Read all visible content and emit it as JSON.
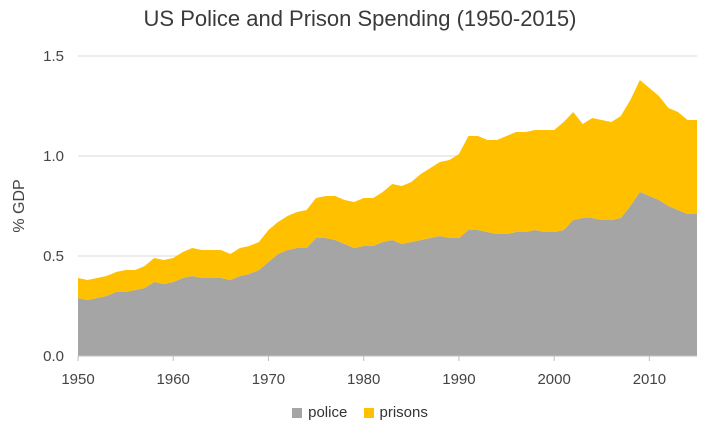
{
  "chart_data": {
    "type": "area",
    "stacked": true,
    "title": "US Police and Prison Spending (1950-2015)",
    "xlabel": "",
    "ylabel": "% GDP",
    "xlim": [
      1950,
      2015
    ],
    "ylim": [
      0,
      1.5
    ],
    "x_ticks": [
      "1950",
      "1960",
      "1970",
      "1980",
      "1990",
      "2000",
      "2010"
    ],
    "y_ticks": [
      "0.0",
      "0.5",
      "1.0",
      "1.5"
    ],
    "grid": "horizontal",
    "legend": "bottom",
    "x": [
      1950,
      1951,
      1952,
      1953,
      1954,
      1955,
      1956,
      1957,
      1958,
      1959,
      1960,
      1961,
      1962,
      1963,
      1964,
      1965,
      1966,
      1967,
      1968,
      1969,
      1970,
      1971,
      1972,
      1973,
      1974,
      1975,
      1976,
      1977,
      1978,
      1979,
      1980,
      1981,
      1982,
      1983,
      1984,
      1985,
      1986,
      1987,
      1988,
      1989,
      1990,
      1991,
      1992,
      1993,
      1994,
      1995,
      1996,
      1997,
      1998,
      1999,
      2000,
      2001,
      2002,
      2003,
      2004,
      2005,
      2006,
      2007,
      2008,
      2009,
      2010,
      2011,
      2012,
      2013,
      2014,
      2015
    ],
    "series": [
      {
        "name": "police",
        "color": "#a5a5a5",
        "values": [
          0.29,
          0.28,
          0.29,
          0.3,
          0.32,
          0.32,
          0.33,
          0.34,
          0.37,
          0.36,
          0.37,
          0.39,
          0.4,
          0.39,
          0.39,
          0.39,
          0.38,
          0.4,
          0.41,
          0.43,
          0.47,
          0.51,
          0.53,
          0.54,
          0.54,
          0.59,
          0.59,
          0.58,
          0.56,
          0.54,
          0.55,
          0.55,
          0.57,
          0.58,
          0.56,
          0.57,
          0.58,
          0.59,
          0.6,
          0.59,
          0.59,
          0.63,
          0.63,
          0.62,
          0.61,
          0.61,
          0.62,
          0.62,
          0.63,
          0.62,
          0.62,
          0.63,
          0.68,
          0.69,
          0.69,
          0.68,
          0.68,
          0.69,
          0.75,
          0.82,
          0.8,
          0.78,
          0.75,
          0.73,
          0.71,
          0.71
        ]
      },
      {
        "name": "prisons",
        "color": "#ffc000",
        "values": [
          0.1,
          0.1,
          0.1,
          0.1,
          0.1,
          0.11,
          0.1,
          0.11,
          0.12,
          0.12,
          0.12,
          0.13,
          0.14,
          0.14,
          0.14,
          0.14,
          0.13,
          0.14,
          0.14,
          0.14,
          0.16,
          0.16,
          0.17,
          0.18,
          0.19,
          0.2,
          0.21,
          0.22,
          0.22,
          0.23,
          0.24,
          0.24,
          0.25,
          0.28,
          0.29,
          0.3,
          0.33,
          0.35,
          0.37,
          0.39,
          0.42,
          0.47,
          0.47,
          0.46,
          0.47,
          0.49,
          0.5,
          0.5,
          0.5,
          0.51,
          0.51,
          0.54,
          0.54,
          0.47,
          0.5,
          0.5,
          0.49,
          0.51,
          0.53,
          0.56,
          0.54,
          0.52,
          0.49,
          0.49,
          0.47,
          0.47
        ]
      }
    ]
  }
}
